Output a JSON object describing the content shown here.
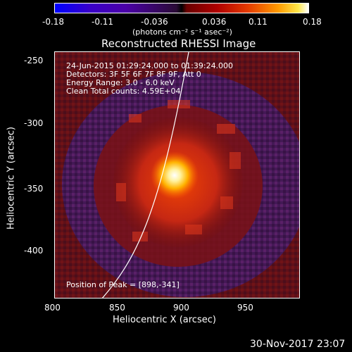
{
  "colorbar": {
    "ticks": [
      "-0.18",
      "-0.11",
      "-0.036",
      "0.036",
      "0.11",
      "0.18"
    ],
    "unit_label": "(photons cm⁻² s⁻¹ asec⁻²)"
  },
  "plot": {
    "title": "Reconstructed RHESSI Image",
    "x_label": "Heliocentric X (arcsec)",
    "y_label": "Heliocentric Y (arcsec)",
    "x_ticks": [
      "800",
      "850",
      "900",
      "950"
    ],
    "y_ticks": [
      "-250",
      "-300",
      "-350",
      "-400"
    ],
    "info_lines": [
      "24-Jun-2015 01:29:24.000 to 01:39:24.000",
      "Detectors: 3F 5F 6F 7F 8F 9F, Att 0",
      "Energy Range: 3.0 - 6.0 keV",
      "Clean    Total counts: 4.59E+04"
    ],
    "peak_text": "Position of Peak = [898,-341]"
  },
  "footer": {
    "timestamp": "30-Nov-2017 23:07"
  },
  "colors": {
    "background": "#000000",
    "axis": "#ffffff",
    "purple_dark": "#3c1f6e",
    "red": "#b51c12",
    "orange": "#ff9a00",
    "core": "#fff29e"
  }
}
